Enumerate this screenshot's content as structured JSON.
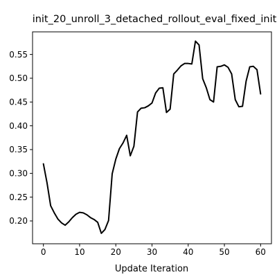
{
  "chart_data": {
    "type": "line",
    "title": "init_20_unroll_3_detached_rollout_eval_fixed_init",
    "xlabel": "Update Iteration",
    "ylabel": "",
    "xlim": [
      -3,
      63
    ],
    "ylim": [
      0.152,
      0.5975
    ],
    "xticks": [
      0,
      10,
      20,
      30,
      40,
      50,
      60
    ],
    "yticks": [
      0.2,
      0.25,
      0.3,
      0.35,
      0.4,
      0.45,
      0.5,
      0.55
    ],
    "ytick_labels": [
      "0.20",
      "0.25",
      "0.30",
      "0.35",
      "0.40",
      "0.45",
      "0.50",
      "0.55"
    ],
    "grid": false,
    "line_color": "#000000",
    "series": [
      {
        "x": [
          0,
          1,
          2,
          3,
          4,
          5,
          6,
          7,
          8,
          9,
          10,
          11,
          12,
          13,
          14,
          15,
          16,
          17,
          18,
          19,
          20,
          21,
          22,
          23,
          24,
          25,
          26,
          27,
          28,
          29,
          30,
          31,
          32,
          33,
          34,
          35,
          36,
          37,
          38,
          39,
          40,
          41,
          42,
          43,
          44,
          45,
          46,
          47,
          48,
          49,
          50,
          51,
          52,
          53,
          54,
          55,
          56,
          57,
          58,
          59,
          60
        ],
        "values": [
          0.32,
          0.28,
          0.232,
          0.217,
          0.204,
          0.196,
          0.191,
          0.198,
          0.207,
          0.214,
          0.218,
          0.217,
          0.213,
          0.207,
          0.203,
          0.197,
          0.174,
          0.182,
          0.201,
          0.299,
          0.33,
          0.352,
          0.364,
          0.38,
          0.337,
          0.357,
          0.429,
          0.437,
          0.438,
          0.442,
          0.448,
          0.469,
          0.479,
          0.48,
          0.428,
          0.435,
          0.509,
          0.517,
          0.526,
          0.531,
          0.531,
          0.53,
          0.578,
          0.57,
          0.499,
          0.48,
          0.455,
          0.45,
          0.524,
          0.525,
          0.528,
          0.523,
          0.509,
          0.455,
          0.44,
          0.441,
          0.494,
          0.524,
          0.525,
          0.518,
          0.467
        ]
      }
    ]
  }
}
